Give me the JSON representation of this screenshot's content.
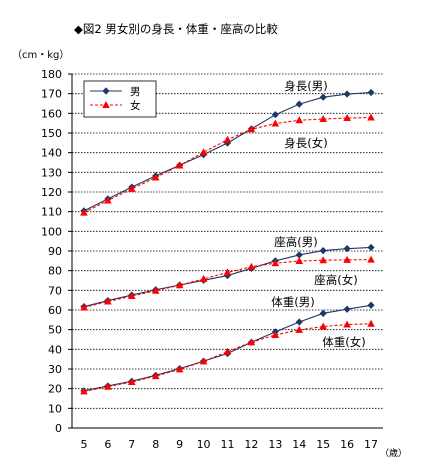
{
  "chart_data": {
    "type": "line",
    "title": "◆図2  男女別の身長・体重・座高の比較",
    "unit_label": "（cm・kg）",
    "x_unit_label": "（歳）",
    "x": [
      5,
      6,
      7,
      8,
      9,
      10,
      11,
      12,
      13,
      14,
      15,
      16,
      17
    ],
    "ylim": [
      0,
      180
    ],
    "ytick_step": 10,
    "grid": "horizontal",
    "legend": {
      "placement": "top-left",
      "entries": [
        {
          "label": "男",
          "color": "#1f3864",
          "marker": "diamond",
          "style": "solid"
        },
        {
          "label": "女",
          "color": "#ff0000",
          "marker": "triangle",
          "style": "dashed"
        }
      ]
    },
    "series": [
      {
        "name": "身長（男）",
        "group": "男",
        "values": [
          110.4,
          116.5,
          122.5,
          128.2,
          133.6,
          139.0,
          144.9,
          152.1,
          159.3,
          164.7,
          168.2,
          169.8,
          170.6
        ]
      },
      {
        "name": "身長（女）",
        "group": "女",
        "values": [
          109.5,
          115.7,
          121.6,
          127.4,
          133.5,
          140.2,
          146.6,
          151.9,
          154.8,
          156.5,
          157.1,
          157.6,
          157.9
        ]
      },
      {
        "name": "座高（男）",
        "group": "男",
        "values": [
          61.7,
          64.8,
          67.6,
          70.3,
          72.7,
          75.1,
          77.5,
          81.2,
          85.0,
          88.0,
          90.2,
          91.2,
          91.8
        ]
      },
      {
        "name": "座高（女）",
        "group": "女",
        "values": [
          61.3,
          64.3,
          67.1,
          69.8,
          72.6,
          75.8,
          79.1,
          82.0,
          83.8,
          84.9,
          85.3,
          85.5,
          85.6
        ]
      },
      {
        "name": "体重（男）",
        "group": "男",
        "values": [
          18.9,
          21.4,
          23.8,
          26.8,
          30.2,
          34.0,
          37.9,
          43.6,
          48.9,
          53.9,
          58.3,
          60.4,
          62.4
        ]
      },
      {
        "name": "体重（女）",
        "group": "女",
        "values": [
          18.6,
          21.0,
          23.4,
          26.4,
          29.8,
          33.9,
          38.8,
          43.6,
          47.3,
          49.9,
          51.6,
          52.6,
          53.0
        ]
      }
    ],
    "annotations": [
      {
        "text": "身長(男)",
        "series": "身長（男）"
      },
      {
        "text": "身長(女)",
        "series": "身長（女）"
      },
      {
        "text": "座高(男)",
        "series": "座高（男）"
      },
      {
        "text": "座高(女)",
        "series": "座高（女）"
      },
      {
        "text": "体重(男)",
        "series": "体重（男）"
      },
      {
        "text": "体重(女)",
        "series": "体重（女）"
      }
    ]
  }
}
